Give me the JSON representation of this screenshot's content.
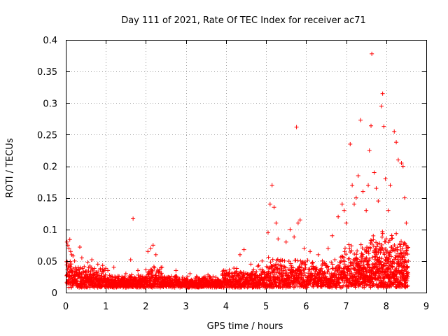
{
  "chart_data": {
    "type": "scatter",
    "title": "Day 111 of 2021, Rate Of TEC Index for receiver ac71",
    "xlabel": "GPS time / hours",
    "ylabel": "ROTI / TECUs",
    "xlim": [
      0,
      9
    ],
    "ylim": [
      0,
      0.4
    ],
    "xticks": [
      "0",
      "1",
      "2",
      "3",
      "4",
      "5",
      "6",
      "7",
      "8",
      "9"
    ],
    "yticks": [
      "0",
      "0.05",
      "0.1",
      "0.15",
      "0.2",
      "0.25",
      "0.3",
      "0.35",
      "0.4"
    ],
    "grid": true,
    "marker": "+",
    "color": "#ff0000",
    "series": [
      {
        "name": "ROTI",
        "points": [
          [
            0.03,
            0.08
          ],
          [
            0.05,
            0.075
          ],
          [
            0.08,
            0.07
          ],
          [
            0.1,
            0.084
          ],
          [
            0.12,
            0.065
          ],
          [
            0.15,
            0.06
          ],
          [
            0.18,
            0.058
          ],
          [
            0.22,
            0.05
          ],
          [
            0.35,
            0.072
          ],
          [
            0.4,
            0.055
          ],
          [
            0.55,
            0.048
          ],
          [
            0.65,
            0.052
          ],
          [
            0.8,
            0.045
          ],
          [
            1.05,
            0.035
          ],
          [
            1.2,
            0.04
          ],
          [
            1.5,
            0.03
          ],
          [
            1.62,
            0.052
          ],
          [
            1.68,
            0.117
          ],
          [
            1.8,
            0.035
          ],
          [
            2.05,
            0.065
          ],
          [
            2.12,
            0.07
          ],
          [
            2.18,
            0.075
          ],
          [
            2.25,
            0.06
          ],
          [
            2.4,
            0.04
          ],
          [
            2.75,
            0.035
          ],
          [
            3.1,
            0.03
          ],
          [
            3.55,
            0.028
          ],
          [
            4.05,
            0.03
          ],
          [
            4.35,
            0.06
          ],
          [
            4.45,
            0.068
          ],
          [
            4.62,
            0.045
          ],
          [
            4.9,
            0.05
          ],
          [
            5.05,
            0.095
          ],
          [
            5.1,
            0.14
          ],
          [
            5.15,
            0.17
          ],
          [
            5.2,
            0.135
          ],
          [
            5.25,
            0.11
          ],
          [
            5.3,
            0.085
          ],
          [
            5.5,
            0.08
          ],
          [
            5.6,
            0.1
          ],
          [
            5.7,
            0.088
          ],
          [
            5.76,
            0.262
          ],
          [
            5.8,
            0.11
          ],
          [
            5.85,
            0.115
          ],
          [
            5.95,
            0.07
          ],
          [
            6.1,
            0.065
          ],
          [
            6.3,
            0.06
          ],
          [
            6.55,
            0.07
          ],
          [
            6.65,
            0.09
          ],
          [
            6.8,
            0.12
          ],
          [
            6.9,
            0.14
          ],
          [
            6.95,
            0.13
          ],
          [
            7.0,
            0.11
          ],
          [
            7.1,
            0.235
          ],
          [
            7.15,
            0.17
          ],
          [
            7.2,
            0.14
          ],
          [
            7.25,
            0.15
          ],
          [
            7.3,
            0.185
          ],
          [
            7.36,
            0.273
          ],
          [
            7.42,
            0.16
          ],
          [
            7.5,
            0.13
          ],
          [
            7.55,
            0.17
          ],
          [
            7.58,
            0.225
          ],
          [
            7.62,
            0.264
          ],
          [
            7.64,
            0.378
          ],
          [
            7.7,
            0.19
          ],
          [
            7.75,
            0.165
          ],
          [
            7.8,
            0.145
          ],
          [
            7.88,
            0.295
          ],
          [
            7.91,
            0.315
          ],
          [
            7.94,
            0.263
          ],
          [
            7.98,
            0.18
          ],
          [
            8.05,
            0.13
          ],
          [
            8.1,
            0.17
          ],
          [
            8.2,
            0.255
          ],
          [
            8.25,
            0.238
          ],
          [
            8.3,
            0.21
          ],
          [
            8.38,
            0.205
          ],
          [
            8.42,
            0.2
          ],
          [
            8.46,
            0.15
          ],
          [
            8.5,
            0.11
          ],
          [
            8.52,
            0.07
          ],
          [
            8.55,
            0.05
          ]
        ]
      }
    ]
  }
}
